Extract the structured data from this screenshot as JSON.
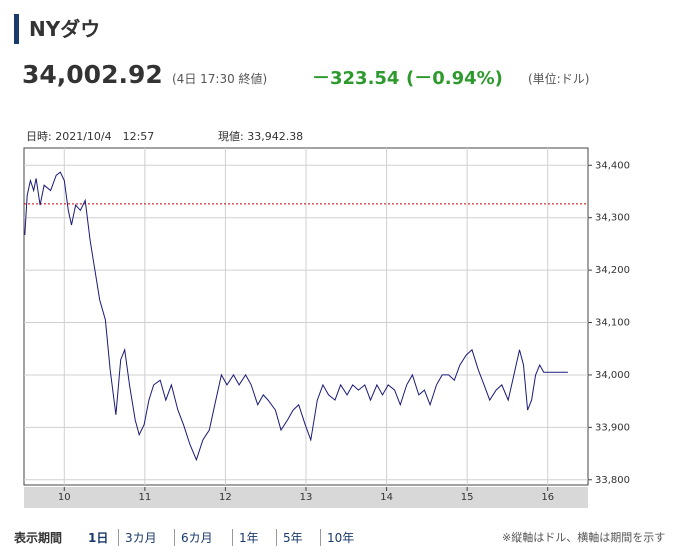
{
  "header": {
    "title": "NYダウ",
    "price": "34,002.92",
    "time": "(4日 17:30 終値)",
    "change": "－323.54",
    "change_percent": "(－0.94%)",
    "unit": "(単位:ドル)"
  },
  "info": {
    "datetime": "日時: 2021/10/4　12:57",
    "current": "現値: 33,942.38"
  },
  "footer": {
    "period_label": "表示期間",
    "periods": [
      "1日",
      "3カ月",
      "6カ月",
      "1年",
      "5年",
      "10年"
    ],
    "note": "※縦軸はドル、横軸は期間を示す"
  },
  "chart_data": {
    "type": "line",
    "color": "#1a1a7a",
    "reference_line": 34326.46,
    "reference_color": "#cc0000",
    "x": [
      9.51,
      9.54,
      9.58,
      9.62,
      9.65,
      9.7,
      9.75,
      9.83,
      9.9,
      9.95,
      10.0,
      10.05,
      10.09,
      10.14,
      10.2,
      10.26,
      10.32,
      10.38,
      10.44,
      10.51,
      10.57,
      10.64,
      10.7,
      10.75,
      10.81,
      10.88,
      10.93,
      10.99,
      11.05,
      11.11,
      11.19,
      11.26,
      11.33,
      11.41,
      11.48,
      11.56,
      11.64,
      11.72,
      11.8,
      11.88,
      11.95,
      12.02,
      12.1,
      12.17,
      12.25,
      12.32,
      12.4,
      12.47,
      12.53,
      12.62,
      12.69,
      12.77,
      12.84,
      12.91,
      12.99,
      13.06,
      13.14,
      13.21,
      13.28,
      13.36,
      13.43,
      13.51,
      13.58,
      13.65,
      13.73,
      13.8,
      13.88,
      13.95,
      14.02,
      14.1,
      14.17,
      14.25,
      14.32,
      14.4,
      14.47,
      14.54,
      14.62,
      14.69,
      14.77,
      14.84,
      14.91,
      14.99,
      15.06,
      15.14,
      15.21,
      15.28,
      15.36,
      15.43,
      15.51,
      15.58,
      15.65,
      15.7,
      15.75,
      15.8,
      15.85,
      15.9,
      15.95,
      16.25
    ],
    "values": [
      34267,
      34343,
      34371,
      34352,
      34375,
      34324,
      34362,
      34352,
      34381,
      34387,
      34371,
      34314,
      34286,
      34324,
      34314,
      34333,
      34257,
      34200,
      34143,
      34105,
      34009,
      33924,
      34029,
      34048,
      33981,
      33914,
      33886,
      33905,
      33952,
      33981,
      33990,
      33952,
      33981,
      33933,
      33905,
      33867,
      33838,
      33876,
      33895,
      33952,
      34000,
      33981,
      34000,
      33981,
      34000,
      33981,
      33943,
      33962,
      33952,
      33933,
      33895,
      33914,
      33933,
      33943,
      33905,
      33876,
      33952,
      33981,
      33962,
      33952,
      33981,
      33962,
      33981,
      33971,
      33981,
      33952,
      33981,
      33962,
      33981,
      33971,
      33943,
      33981,
      34000,
      33962,
      33971,
      33943,
      33981,
      34000,
      34000,
      33990,
      34019,
      34038,
      34048,
      34009,
      33981,
      33952,
      33971,
      33981,
      33952,
      34000,
      34048,
      34019,
      33933,
      33952,
      34000,
      34019,
      34005,
      34005
    ],
    "xlim": [
      9.5,
      16.5
    ],
    "xticks": [
      10,
      11,
      12,
      13,
      14,
      15,
      16
    ],
    "ylim": [
      33790,
      34433
    ],
    "yticks": [
      {
        "value": 33800,
        "label": "33,800"
      },
      {
        "value": 33900,
        "label": "33,900"
      },
      {
        "value": 34000,
        "label": "34,000"
      },
      {
        "value": 34100,
        "label": "34,100"
      },
      {
        "value": 34200,
        "label": "34,200"
      },
      {
        "value": 34300,
        "label": "34,300"
      },
      {
        "value": 34400,
        "label": "34,400"
      }
    ],
    "grid": true
  }
}
